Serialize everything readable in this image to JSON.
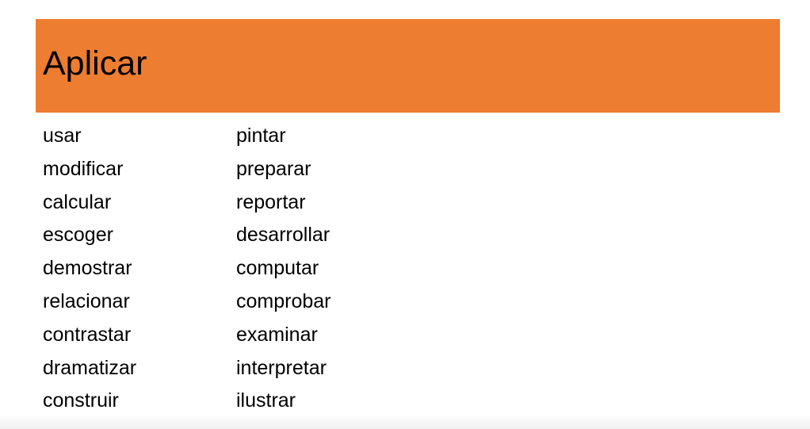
{
  "slide": {
    "title": "Aplicar",
    "banner_color": "#ed7d31",
    "column1": [
      "usar",
      "modificar",
      "calcular",
      "escoger",
      "demostrar",
      "relacionar",
      "contrastar",
      "dramatizar",
      "construir"
    ],
    "column2": [
      "pintar",
      "preparar",
      "reportar",
      "desarrollar",
      "computar",
      "comprobar",
      "examinar",
      "interpretar",
      "ilustrar"
    ]
  }
}
